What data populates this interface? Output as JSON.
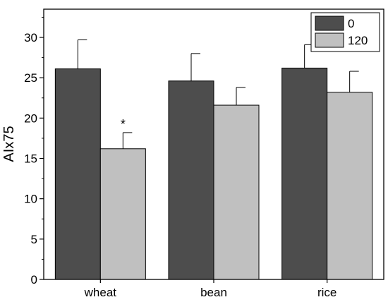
{
  "chart_data": {
    "type": "bar",
    "ylabel": "AIx75",
    "xlabel": "",
    "ylim": [
      0,
      33.5
    ],
    "yticks": [
      0,
      5,
      10,
      15,
      20,
      25,
      30
    ],
    "categories": [
      "wheat",
      "bean",
      "rice"
    ],
    "series": [
      {
        "name": "0",
        "values": [
          26.1,
          24.6,
          26.2
        ],
        "errors": [
          3.6,
          3.4,
          2.9
        ],
        "color": "#4d4d4d"
      },
      {
        "name": "120",
        "values": [
          16.2,
          21.6,
          23.2
        ],
        "errors": [
          2.0,
          2.2,
          2.6
        ],
        "color": "#c0c0c0"
      }
    ],
    "annotations": [
      {
        "category": "wheat",
        "series": "120",
        "text": "*"
      }
    ],
    "legend": "top-right",
    "grid": false
  }
}
